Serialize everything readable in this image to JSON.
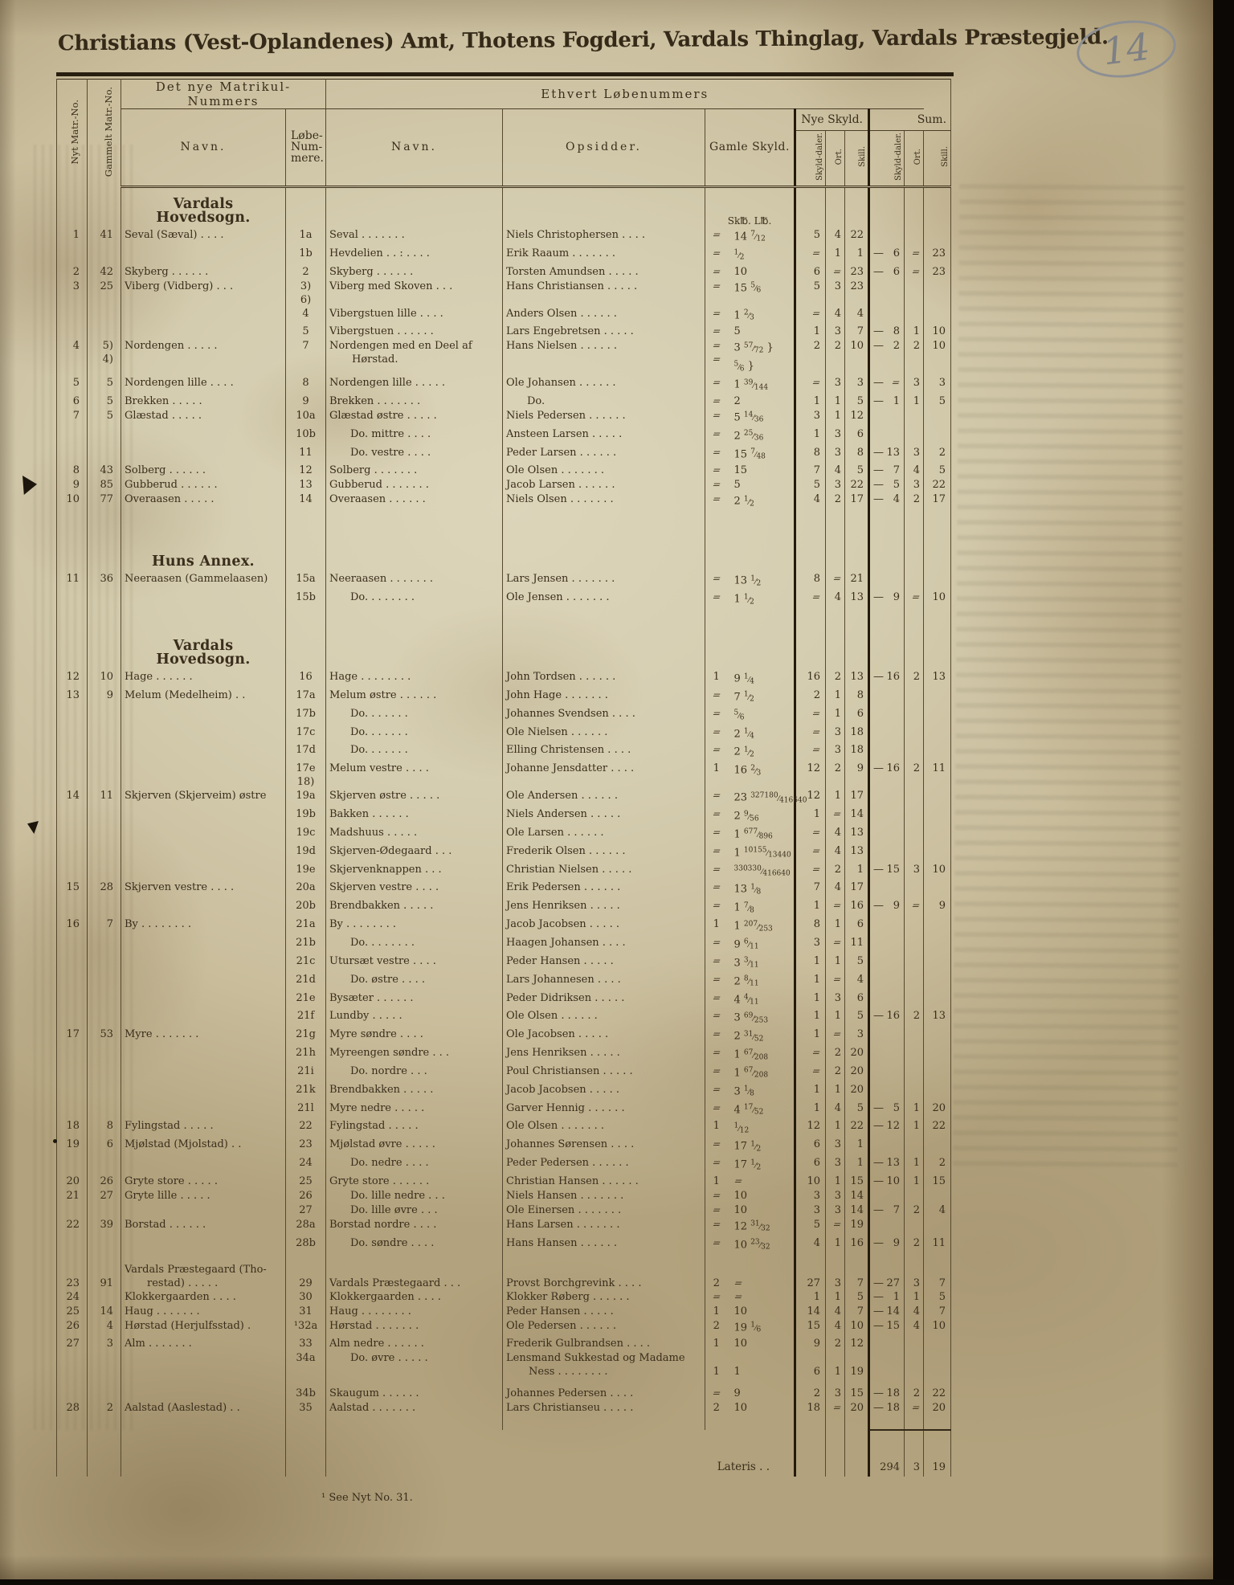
{
  "page": {
    "number": "14"
  },
  "title": "Christians (Vest-Oplandenes) Amt, Thotens Fogderi, Vardals Thinglag, Vardals Præstegjeld.",
  "footnote": "¹ See Nyt No. 31.",
  "header": {
    "col_nyt": "Nyt Matr.-No.",
    "col_gammelt": "Gammelt Matr.-No.",
    "group_matrikul": "Det nye Matrikul-Nummers",
    "group_lobenummer": "Ethvert Løbenummers",
    "col_navn1": "Navn.",
    "col_lobenummer": "Løbe-\nNum-\nmere.",
    "col_navn2": "Navn.",
    "col_opsidder": "Opsidder.",
    "col_gamle_skyld": "Gamle Skyld.",
    "group_nye_skyld": "Nye Skyld.",
    "group_sum": "Sum.",
    "sub_skylddaler": "Skyld-daler.",
    "sub_ort": "Ort.",
    "sub_skill": "Skill."
  },
  "lateris": {
    "label": "Lateris . .",
    "daler": "294",
    "ort": "3",
    "skill": "19"
  },
  "rows": [
    {
      "t": "sec",
      "text": "Vardals Hovedsogn.",
      "units": "Sk℔. L℔."
    },
    [
      "1",
      "41",
      "Seval (Sæval) .  .  .  .",
      "1a",
      "Seval .  .  .  .  .  .  .",
      "Niels Christophersen  .  .  .  .",
      "⸗",
      "14 7/12",
      "5",
      "4",
      "22",
      "",
      "",
      ""
    ],
    [
      "",
      "",
      "",
      "1b",
      "Hevdelien . .  :  .  .  .  .",
      "Erik Raaum .  .  .  .  .  .  .",
      "⸗",
      "1/2",
      "⸗",
      "1",
      "1",
      "— 6",
      "⸗",
      "23"
    ],
    [
      "2",
      "42",
      "Skyberg .  .  .  .  .  .",
      "2",
      "Skyberg .  .  .  .  .  .",
      "Torsten Amundsen .  .  .  .  .",
      "⸗",
      "10",
      "6",
      "⸗",
      "23",
      "— 6",
      "⸗",
      "23"
    ],
    [
      "3",
      "25",
      "Viberg (Vidberg)  .  .  .",
      "3)\n6)",
      "Viberg med Skoven  .  .  .",
      "Hans Christiansen .  .  .  .  .",
      "⸗",
      "15 5/6",
      "5",
      "3",
      "23",
      "",
      "",
      ""
    ],
    [
      "",
      "",
      "",
      "4",
      "Vibergstuen lille  .  .  .  .",
      "Anders Olsen .  .  .  .  .  .",
      "⸗",
      "1 2/3",
      "⸗",
      "4",
      "4",
      "",
      "",
      ""
    ],
    [
      "",
      "",
      "",
      "5",
      "Vibergstuen .  .  .  .  .  .",
      "Lars Engebretsen .  .  .  .  .",
      "⸗",
      "5",
      "1",
      "3",
      "7",
      "— 8",
      "1",
      "10"
    ],
    [
      "4",
      "5)\n4)",
      "Nordengen   .  .  .  .  .",
      "7",
      "Nordengen med en Deel af\n\tHørstad.",
      "Hans Nielsen .  .  .  .  .  .",
      "⸗\n⸗",
      "3 57/72 }\n5/6 }",
      "2",
      "2",
      "10",
      "— 2",
      "2",
      "10"
    ],
    [
      "5",
      "5",
      "Nordengen lille .  .  .  .",
      "8",
      "Nordengen lille .  .  .  .  .",
      "Ole Johansen .  .  .  .  .  .",
      "⸗",
      "1 39/144",
      "⸗",
      "3",
      "3",
      "— ⸗",
      "3",
      "3"
    ],
    [
      "6",
      "5",
      "Brekken  .   .  .  .  .",
      "9",
      "Brekken .  .  .  .  .  .  .",
      "Do.",
      "⸗",
      "2",
      "1",
      "1",
      "5",
      "— 1",
      "1",
      "5"
    ],
    [
      "7",
      "5",
      "Glæstad  .  .  .  .  .",
      "10a",
      "Glæstad østre  . .  .  .  .",
      "Niels Pedersen .  .  .  .  .  .",
      "⸗",
      "5 14/36",
      "3",
      "1",
      "12",
      "",
      "",
      ""
    ],
    [
      "",
      "",
      "",
      "10b",
      "Do.   mittre .  .  .  .",
      "Ansteen Larsen .  .  .  .  .",
      "⸗",
      "2 25/36",
      "1",
      "3",
      "6",
      "",
      "",
      ""
    ],
    [
      "",
      "",
      "",
      "11",
      "Do.   vestre .  .  .  .",
      "Peder Larsen  .  .  .  .  .  .",
      "⸗",
      "15 7/48",
      "8",
      "3",
      "8",
      "—13",
      "3",
      "2"
    ],
    [
      "8",
      "43",
      "Solberg .  .  .  .  .  .",
      "12",
      "Solberg .  .  .  .  .  .  .",
      "Ole Olsen .  .  .  .  .  .  .",
      "⸗",
      "15",
      "7",
      "4",
      "5",
      "— 7",
      "4",
      "5"
    ],
    [
      "9",
      "85",
      "Gubberud .  .  .  .  .  .",
      "13",
      "Gubberud . .  .  .  .  .  .",
      "Jacob Larsen .  .  .  .  .  .",
      "⸗",
      "5",
      "5",
      "3",
      "22",
      "— 5",
      "3",
      "22"
    ],
    [
      "10",
      "77",
      "Overaasen  .  .  .  .  .",
      "14",
      "Overaasen .  .  .  .  .  .",
      "Niels Olsen .  .  .  .  .  .  .",
      "⸗",
      "2 1/2",
      "4",
      "2",
      "17",
      "— 4",
      "2",
      "17"
    ],
    {
      "t": "sp",
      "h": 26
    },
    {
      "t": "sec",
      "text": "Huns Annex."
    },
    [
      "11",
      "36",
      "Neeraasen (Gammelaasen)",
      "15a",
      "Neeraasen .  .  .  .  .  .  .",
      "Lars Jensen .  .  .  .  .  .  .",
      "⸗",
      "13 1/2",
      "8",
      "⸗",
      "21",
      "",
      "",
      ""
    ],
    [
      "",
      "",
      "",
      "15b",
      "Do. .  .  .  .  .  .  .",
      "Ole Jensen  .  .  .  .  .  .  .",
      "⸗",
      "1 1/2",
      "⸗",
      "4",
      "13",
      "— 9",
      "⸗",
      "10"
    ],
    {
      "t": "sp",
      "h": 26
    },
    {
      "t": "sec",
      "text": "Vardals Hovedsogn."
    },
    [
      "12",
      "10",
      "Hage  .  .  .  .  .  .",
      "16",
      "Hage .  .  .  .  .  .  .  .",
      "John Tordsen .  .  .  .  .  .",
      "1",
      "9 1/4",
      "16",
      "2",
      "13",
      "—16",
      "2",
      "13"
    ],
    [
      "13",
      "9",
      "Melum (Medelheim)  .  .",
      "17a",
      "Melum østre .  .  .  .  .  .",
      "John Hage .  .  .  .  .  .  .",
      "⸗",
      "7 1/2",
      "2",
      "1",
      "8",
      "",
      "",
      ""
    ],
    [
      "",
      "",
      "",
      "17b",
      "Do.  .  .  .  .  .  .",
      "Johannes Svendsen .  .  .  .",
      "⸗",
      "5/6",
      "⸗",
      "1",
      "6",
      "",
      "",
      ""
    ],
    [
      "",
      "",
      "",
      "17c",
      "Do.  .  .  .  .  .  .",
      "Ole Nielsen .  .  .  .  .  .",
      "⸗",
      "2 1/4",
      "⸗",
      "3",
      "18",
      "",
      "",
      ""
    ],
    [
      "",
      "",
      "",
      "17d",
      "Do.  .  .  .  .  .  .",
      "Elling Christensen .  .  .  .",
      "⸗",
      "2 1/2",
      "⸗",
      "3",
      "18",
      "",
      "",
      ""
    ],
    [
      "",
      "",
      "",
      "17e\n18)",
      "Melum vestre .  .  .  .",
      "Johanne Jensdatter  .  .  .  .",
      "1",
      "16 2/3",
      "12",
      "2",
      "9",
      "—16",
      "2",
      "11"
    ],
    [
      "14",
      "11",
      "Skjerven (Skjerveim) østre",
      "19a",
      "Skjerven østre .  .  .  .  .",
      "Ole Andersen .  .  .  .  .  .",
      "⸗",
      "23 327180/416640",
      "12",
      "1",
      "17",
      "",
      "",
      ""
    ],
    [
      "",
      "",
      "",
      "19b",
      "Bakken  .  .  .  .  .  .",
      "Niels Andersen .  .  .  .  .",
      "⸗",
      "2 9/56",
      "1",
      "⸗",
      "14",
      "",
      "",
      ""
    ],
    [
      "",
      "",
      "",
      "19c",
      "Madshuus  .  .  .  .  .",
      "Ole Larsen  .  .  .  .  .  .",
      "⸗",
      "1 677/896",
      "⸗",
      "4",
      "13",
      "",
      "",
      ""
    ],
    [
      "",
      "",
      "",
      "19d",
      "Skjerven-Ødegaard  .  .  .",
      "Frederik Olsen .  .  .  .  .  .",
      "⸗",
      "1 10155/13440",
      "⸗",
      "4",
      "13",
      "",
      "",
      ""
    ],
    [
      "",
      "",
      "",
      "19e",
      "Skjervenknappen  .  .  .",
      "Christian Nielsen .  .  .  .  .",
      "⸗",
      "330330/416640",
      "⸗",
      "2",
      "1",
      "—15",
      "3",
      "10"
    ],
    [
      "15",
      "28",
      "Skjerven vestre  .  .  .  .",
      "20a",
      "Skjerven vestre .  .  .  .",
      "Erik Pedersen  .  .  .  .  .  .",
      "⸗",
      "13 1/8",
      "7",
      "4",
      "17",
      "",
      "",
      ""
    ],
    [
      "",
      "",
      "",
      "20b",
      "Brendbakken .  .  .  .  .",
      "Jens Henriksen .  .  .  .  .",
      "⸗",
      "1 7/8",
      "1",
      "⸗",
      "16",
      "— 9",
      "⸗",
      "9"
    ],
    [
      "16",
      "7",
      "By .  .  .  .  .  .  .  .",
      "21a",
      "By .  .  .  .  .  .  .  .",
      "Jacob Jacobsen .  .  .  .  .",
      "1",
      "1 207/253",
      "8",
      "1",
      "6",
      "",
      "",
      ""
    ],
    [
      "",
      "",
      "",
      "21b",
      "Do.  .  .  .  .  .  .  .",
      "Haagen Johansen .  .  .  .",
      "⸗",
      "9 6/11",
      "3",
      "⸗",
      "11",
      "",
      "",
      ""
    ],
    [
      "",
      "",
      "",
      "21c",
      "Utursæt vestre  .  .  .  .",
      "Peder Hansen  .  .  .  .  .",
      "⸗",
      "3 3/11",
      "1",
      "1",
      "5",
      "",
      "",
      ""
    ],
    [
      "",
      "",
      "",
      "21d",
      "Do.   østre  .  .  .  .",
      "Lars Johannesen .  .  .  .",
      "⸗",
      "2 8/11",
      "1",
      "⸗",
      "4",
      "",
      "",
      ""
    ],
    [
      "",
      "",
      "",
      "21e",
      "Bysæter .  .  .  .  .  .",
      "Peder Didriksen .  .  .  .  .",
      "⸗",
      "4 4/11",
      "1",
      "3",
      "6",
      "",
      "",
      ""
    ],
    [
      "",
      "",
      "",
      "21f",
      "Lundby   .  .  .  .  .",
      "Ole Olsen  .  .  .  .  .  .",
      "⸗",
      "3 69/253",
      "1",
      "1",
      "5",
      "—16",
      "2",
      "13"
    ],
    [
      "17",
      "53",
      "Myre .  .  .  .  .  .  .",
      "21g",
      "Myre søndre .  .  .  .",
      "Ole Jacobsen  .  .  .  .  .",
      "⸗",
      "2 31/52",
      "1",
      "⸗",
      "3",
      "",
      "",
      ""
    ],
    [
      "",
      "",
      "",
      "21h",
      "Myreengen søndre .  .  .",
      "Jens Henriksen .  .  .  .  .",
      "⸗",
      "1 67/208",
      "⸗",
      "2",
      "20",
      "",
      "",
      ""
    ],
    [
      "",
      "",
      "",
      "21i",
      "Do.   nordre  .  .  .",
      "Poul Christiansen .  .  .  .  .",
      "⸗",
      "1 67/208",
      "⸗",
      "2",
      "20",
      "",
      "",
      ""
    ],
    [
      "",
      "",
      "",
      "21k",
      "Brendbakken .  .  .  .  .",
      "Jacob Jacobsen  .  .  .  .  .",
      "⸗",
      "3 1/8",
      "1",
      "1",
      "20",
      "",
      "",
      ""
    ],
    [
      "",
      "",
      "",
      "21l",
      "Myre nedre .  .  .  .  .",
      "Garver Hennig .  .  .  .  .  .",
      "⸗",
      "4 17/52",
      "1",
      "4",
      "5",
      "— 5",
      "1",
      "20"
    ],
    [
      "18",
      "8",
      "Fylingstad  .  .  .  .  .",
      "22",
      "Fylingstad   .  .  .  .  .",
      "Ole Olsen  .  .  .  .  .  .  .",
      "1",
      "1/12",
      "12",
      "1",
      "22",
      "—12",
      "1",
      "22"
    ],
    [
      "19",
      "6",
      "Mjølstad (Mjolstad)  .  .",
      "23",
      "Mjølstad øvre  .  .  .  .  .",
      "Johannes Sørensen  .  .  .  .",
      "⸗",
      "17 1/2",
      "6",
      "3",
      "1",
      "",
      "",
      ""
    ],
    [
      "",
      "",
      "",
      "24",
      "Do.   nedre  .  .  .  .",
      "Peder Pedersen .  .  .  .  .  .",
      "⸗",
      "17 1/2",
      "6",
      "3",
      "1",
      "—13",
      "1",
      "2"
    ],
    [
      "20",
      "26",
      "Gryte store .  .  .  .  .",
      "25",
      "Gryte store .  .  .  .  .  .",
      "Christian Hansen .  .  .  .  .  .",
      "1",
      "⸗",
      "10",
      "1",
      "15",
      "—10",
      "1",
      "15"
    ],
    [
      "21",
      "27",
      "Gryte lille  .  .  .  .  .",
      "26",
      "Do.  lille nedre  .  .  .",
      "Niels Hansen .  .  .  .  .  .  .",
      "⸗",
      "10",
      "3",
      "3",
      "14",
      "",
      "",
      ""
    ],
    [
      "",
      "",
      "",
      "27",
      "Do.  lille øvre  .  .  .",
      "Ole Einersen .  .  .  .  .  .  .",
      "⸗",
      "10",
      "3",
      "3",
      "14",
      "— 7",
      "2",
      "4"
    ],
    [
      "22",
      "39",
      "Borstad  .  .  .  .  .  .",
      "28a",
      "Borstad nordre .  .  .  .",
      "Hans Larsen .  .  .  .  .  .  .",
      "⸗",
      "12 31/32",
      "5",
      "⸗",
      "19",
      "",
      "",
      ""
    ],
    [
      "",
      "",
      "",
      "28b",
      "Do.  søndre  .  .  .  .",
      "Hans Hansen  .  .  .  .  .  .",
      "⸗",
      "10 23/32",
      "4",
      "1",
      "16",
      "— 9",
      "2",
      "11"
    ],
    {
      "t": "sp",
      "h": 10
    },
    [
      "23",
      "91",
      "Vardals Præstegaard (Tho-\n\trestad)  .  .  .  .  .",
      "29",
      "Vardals Præstegaard .  .  .",
      "Provst Borchgrevink  .  .  .  .",
      "2",
      "⸗",
      "27",
      "3",
      "7",
      "—27",
      "3",
      "7",
      "pt"
    ],
    [
      "24",
      "",
      "Klokkergaarden  .  .  .  .",
      "30",
      "Klokkergaarden  .  .  .  .",
      "Klokker Røberg .  .  .  .  .  .",
      "⸗",
      "⸗",
      "1",
      "1",
      "5",
      "— 1",
      "1",
      "5"
    ],
    [
      "25",
      "14",
      "Haug .  .  .  .  .  .  .",
      "31",
      "Haug .  .  .  .  .  .  .  .",
      "Peder Hansen  .  .  .  .  .",
      "1",
      "10",
      "14",
      "4",
      "7",
      "—14",
      "4",
      "7"
    ],
    [
      "26",
      "4",
      "Hørstad (Herjulfsstad)  .",
      "¹32a",
      "Hørstad  .  .  .  .  .  .  .",
      "Ole Pedersen  .  .  .  .  .  .",
      "2",
      "19 1/6",
      "15",
      "4",
      "10",
      "—15",
      "4",
      "10"
    ],
    [
      "27",
      "3",
      "Alm .  .  .  .  .  .  .",
      "33",
      "Alm nedre  .  .  .  .  .  .",
      "Frederik Gulbrandsen .  .  .  .",
      "1",
      "10",
      "9",
      "2",
      "12",
      "",
      "",
      ""
    ],
    [
      "",
      "",
      "",
      "34a",
      "Do. øvre   .  .  .  .  .",
      "Lensmand Sukkestad og Madame\n\tNess .  .  .  .  .  .  .  .",
      "1",
      "1",
      "6",
      "1",
      "19",
      "",
      "",
      "",
      "pb"
    ],
    {
      "t": "sp",
      "h": 10
    },
    [
      "",
      "",
      "",
      "34b",
      "Skaugum  .  .  .  .  .  .",
      "Johannes Pedersen  .  .  .  .",
      "⸗",
      "9",
      "2",
      "3",
      "15",
      "—18",
      "2",
      "22"
    ],
    [
      "28",
      "2",
      "Aalstad (Aaslestad)  .  .",
      "35",
      "Aalstad  .  .  .  .  .  .  .",
      "Lars Christianseu .  .  .  .  .",
      "2",
      "10",
      "18",
      "⸗",
      "20",
      "—18",
      "⸗",
      "20"
    ],
    {
      "t": "sp",
      "h": 18
    },
    {
      "t": "lat"
    }
  ]
}
